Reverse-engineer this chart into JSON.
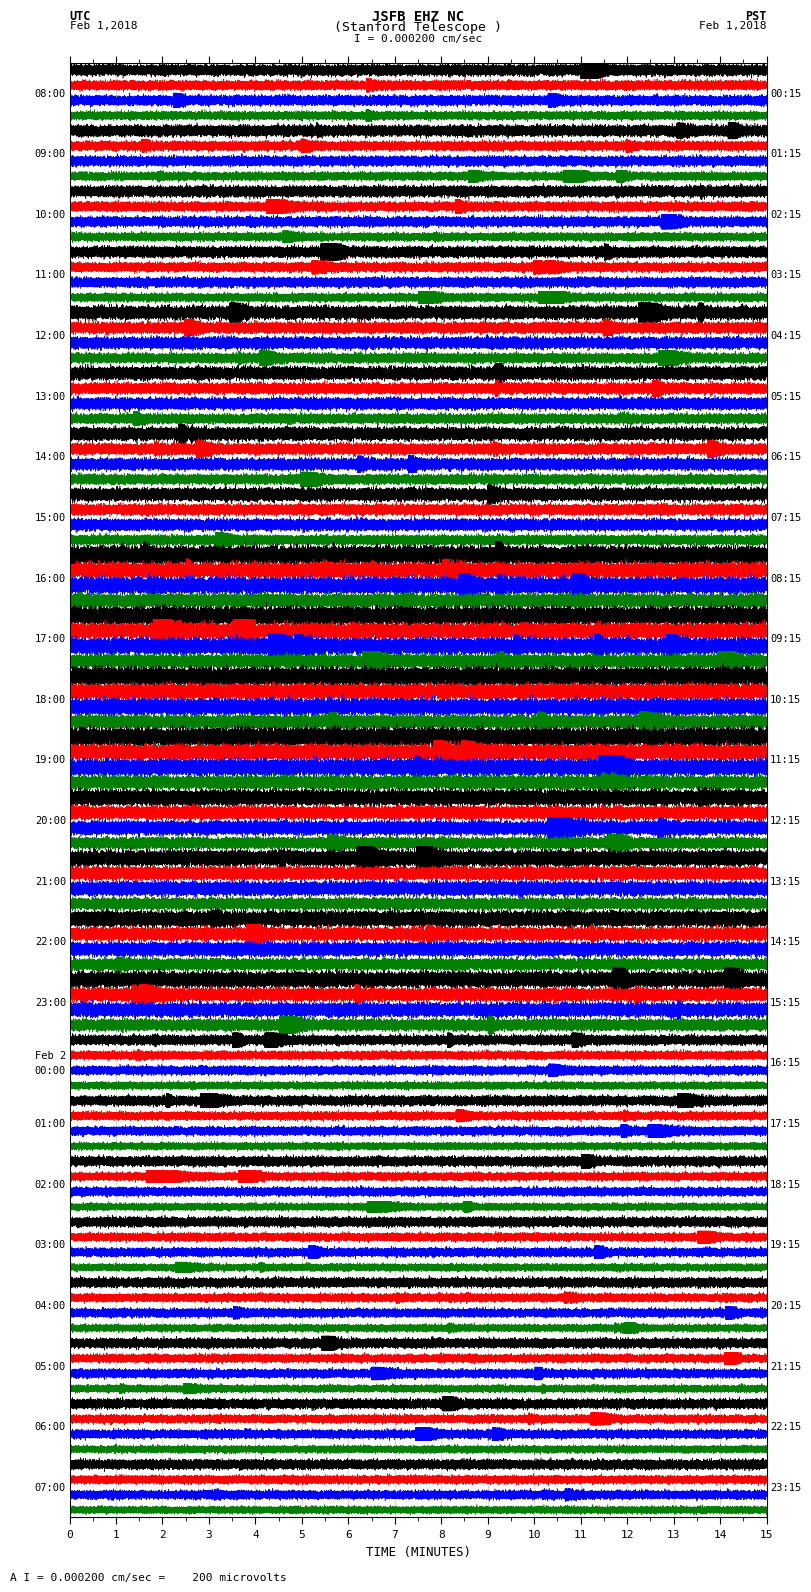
{
  "title_line1": "JSFB EHZ NC",
  "title_line2": "(Stanford Telescope )",
  "scale_label": "I = 0.000200 cm/sec",
  "footer_label": "A I = 0.000200 cm/sec =    200 microvolts",
  "xlabel": "TIME (MINUTES)",
  "left_timezone": "UTC",
  "left_date": "Feb 1,2018",
  "right_timezone": "PST",
  "right_date": "Feb 1,2018",
  "left_times": [
    "08:00",
    "09:00",
    "10:00",
    "11:00",
    "12:00",
    "13:00",
    "14:00",
    "15:00",
    "16:00",
    "17:00",
    "18:00",
    "19:00",
    "20:00",
    "21:00",
    "22:00",
    "23:00",
    "Feb 2\n00:00",
    "01:00",
    "02:00",
    "03:00",
    "04:00",
    "05:00",
    "06:00",
    "07:00"
  ],
  "right_times": [
    "00:15",
    "01:15",
    "02:15",
    "03:15",
    "04:15",
    "05:15",
    "06:15",
    "07:15",
    "08:15",
    "09:15",
    "10:15",
    "11:15",
    "12:15",
    "13:15",
    "14:15",
    "15:15",
    "16:15",
    "17:15",
    "18:15",
    "19:15",
    "20:15",
    "21:15",
    "22:15",
    "23:15"
  ],
  "colors": [
    "black",
    "red",
    "blue",
    "green"
  ],
  "num_rows": 24,
  "traces_per_row": 4,
  "minutes": 15,
  "sample_rate": 100,
  "bg_color": "white",
  "grid_color": "#aaaaaa",
  "fig_width": 8.5,
  "fig_height": 16.13
}
